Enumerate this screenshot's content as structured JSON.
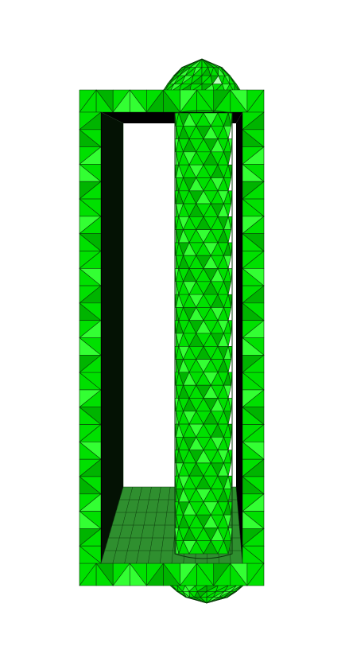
{
  "scene": {
    "colors": {
      "background": "#ffffff",
      "mesh_fill": "#00e000",
      "mesh_fill_light": "#33ff33",
      "mesh_fill_shadow": "#00b400",
      "highlight": "#b8ffb8",
      "edge": "#0a3a0a",
      "interior_dark": "#000000",
      "floor": "#2f8f2f"
    },
    "mesh": {
      "frame_cell_size": 22,
      "rod_columns": 6,
      "rod_rows": 34
    }
  }
}
